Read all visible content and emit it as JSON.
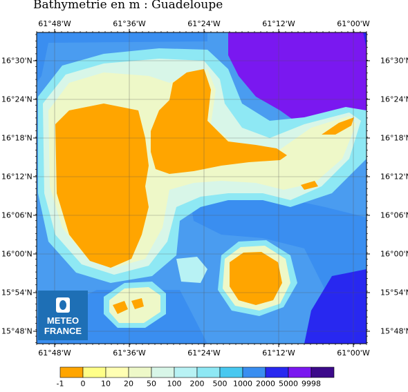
{
  "title": "Bathymetrie en m : Guadeloupe",
  "x_ticks": [
    "61°48'W",
    "61°36'W",
    "61°24'W",
    "61°12'W",
    "61°00'W"
  ],
  "y_ticks": [
    "16°30'N",
    "16°24'N",
    "16°18'N",
    "16°12'N",
    "16°06'N",
    "16°00'N",
    "15°54'N",
    "15°48'N"
  ],
  "logo": {
    "line1": "METEO",
    "line2": "FRANCE"
  },
  "colorbar": {
    "labels": [
      "-1",
      "0",
      "10",
      "20",
      "50",
      "100",
      "200",
      "500",
      "1000",
      "2000",
      "5000",
      "9998"
    ],
    "colors": [
      "#ffa500",
      "#ffff88",
      "#ffffb3",
      "#eef8c8",
      "#d8f6e8",
      "#b8f2f4",
      "#8ee8f4",
      "#48c8f0",
      "#3a8ef0",
      "#2828f0",
      "#7a18f0",
      "#3c0a8a"
    ]
  }
}
